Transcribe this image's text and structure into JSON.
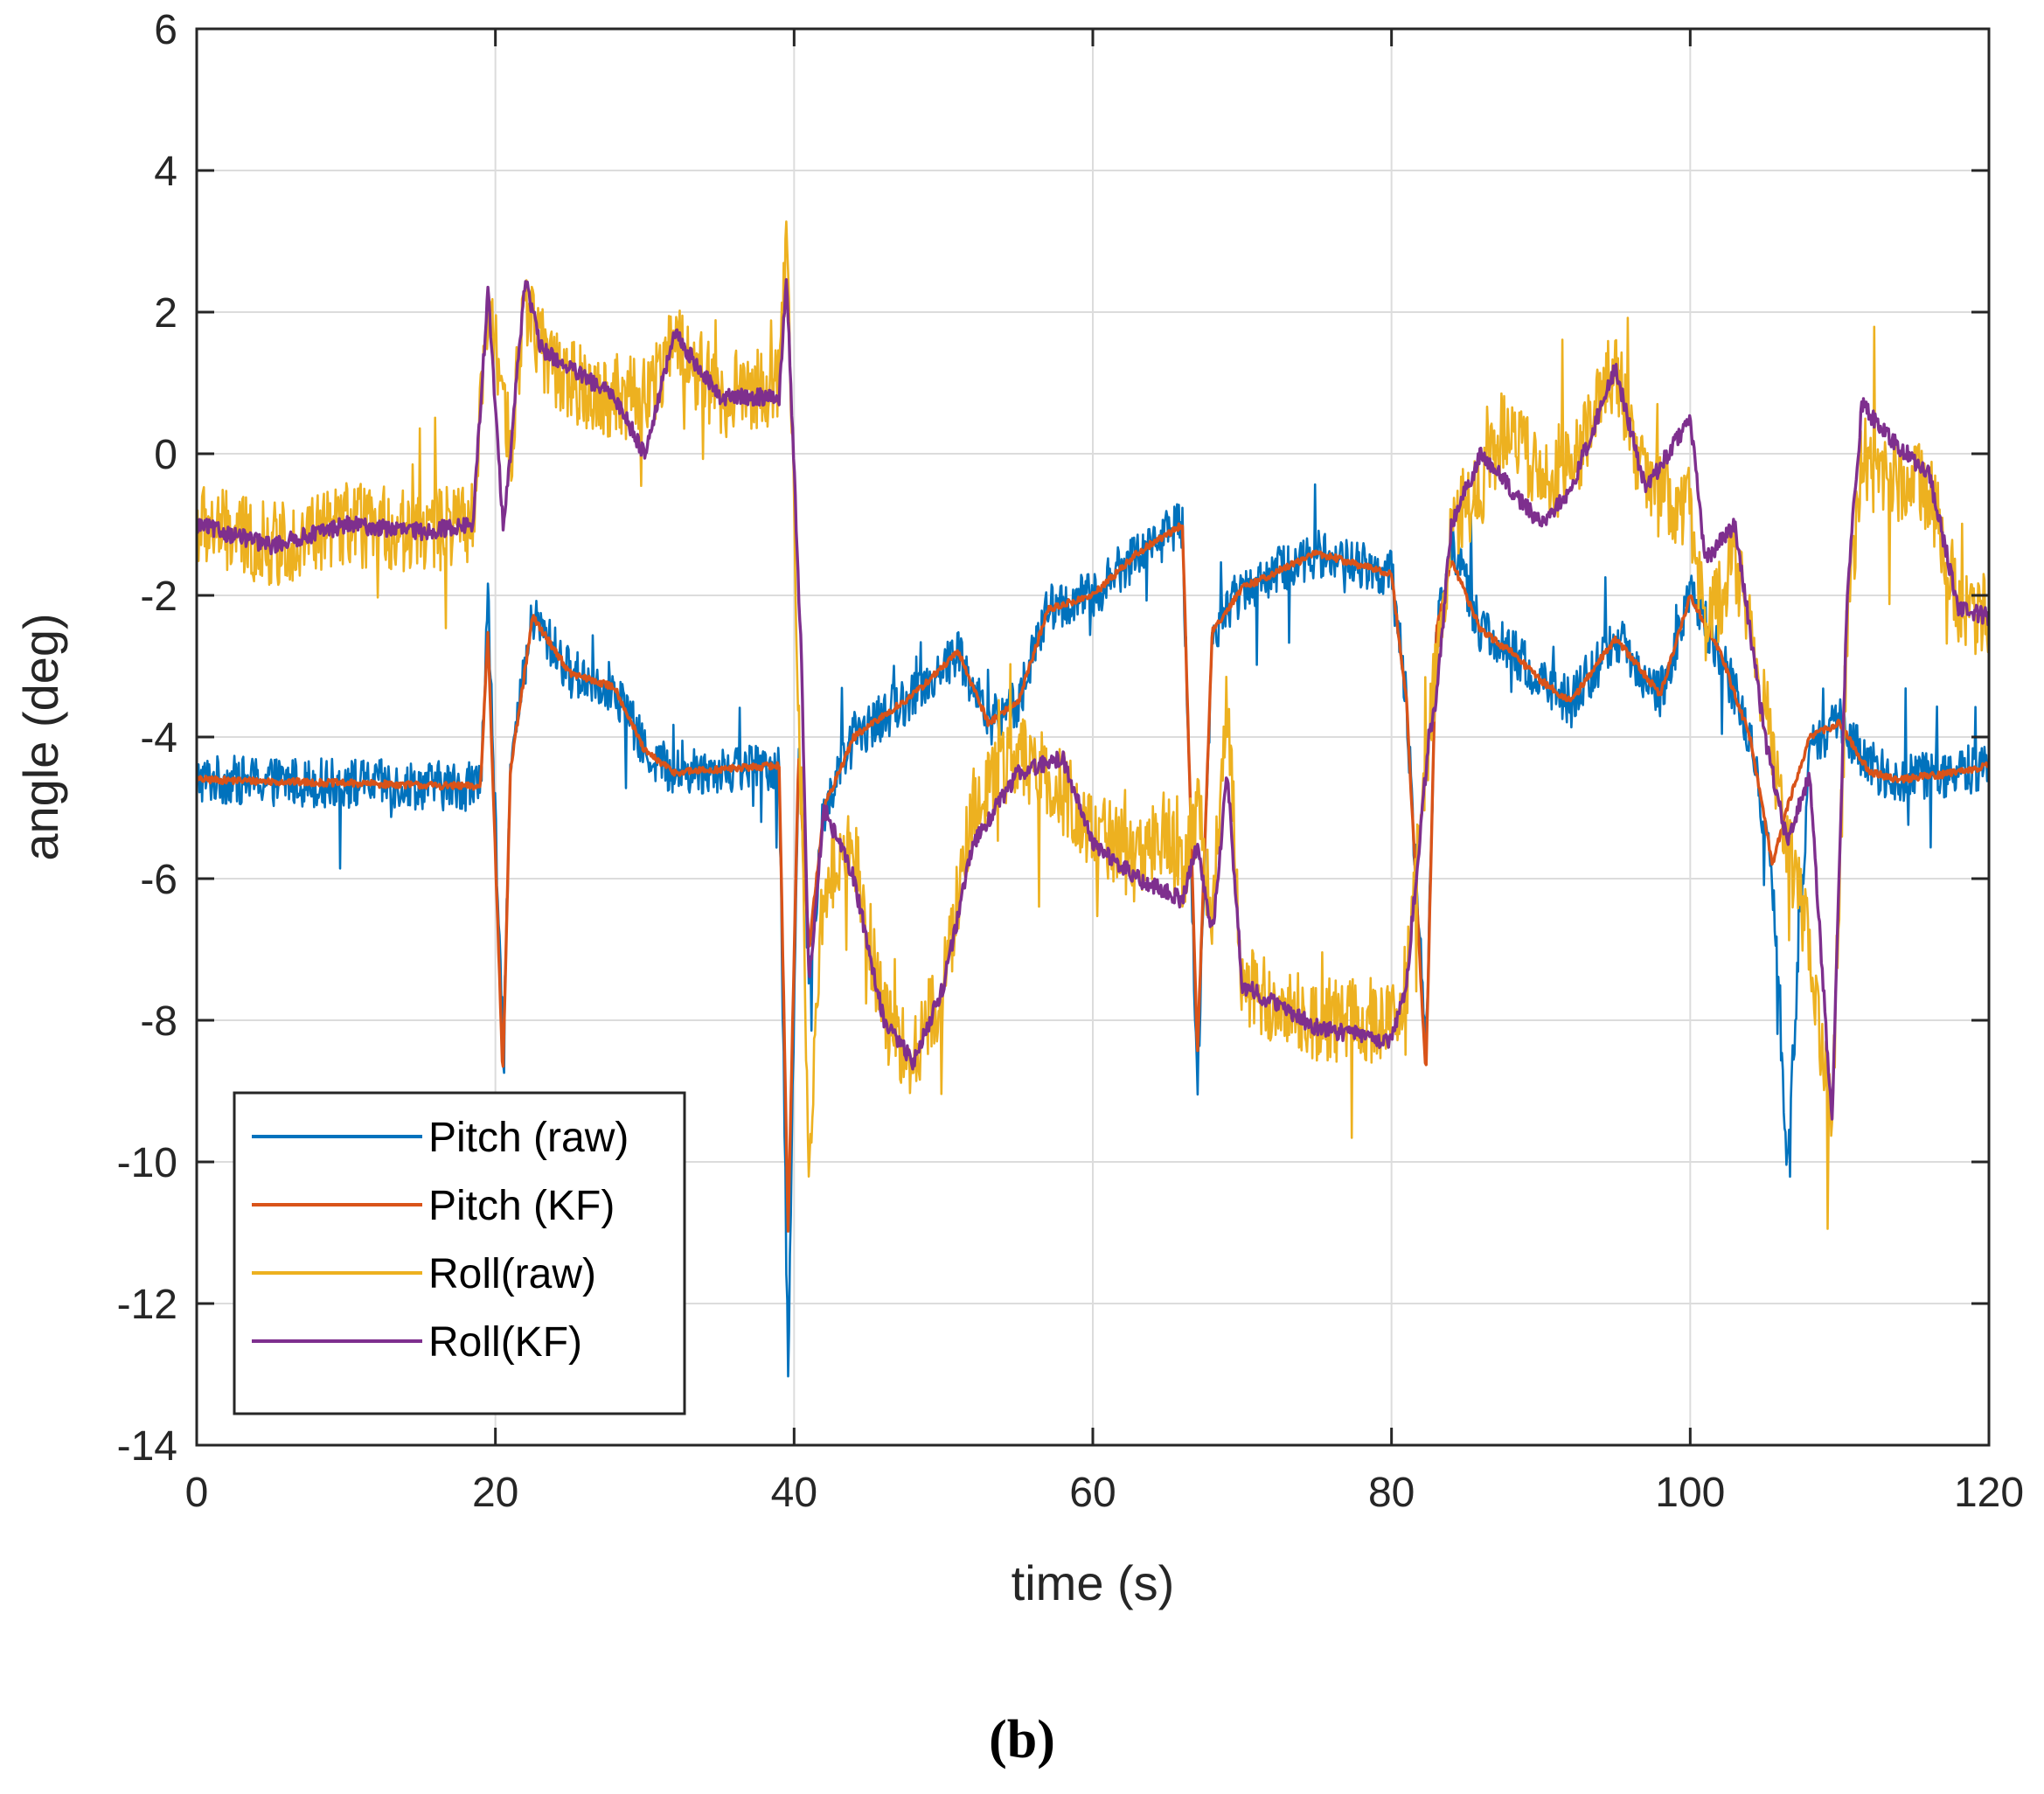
{
  "chart_data": {
    "type": "line",
    "title": "",
    "xlabel": "time (s)",
    "ylabel": "angle (deg)",
    "xlim": [
      0,
      120
    ],
    "ylim": [
      -14,
      6
    ],
    "xticks": [
      0,
      20,
      40,
      60,
      80,
      100,
      120
    ],
    "yticks": [
      -14,
      -12,
      -10,
      -8,
      -6,
      -4,
      -2,
      0,
      2,
      4,
      6
    ],
    "grid": true,
    "legend_position": "bottom-left",
    "caption": "(b)",
    "series": [
      {
        "name": "Pitch (raw)",
        "color": "#0072BD",
        "noise": 0.35,
        "x": [
          0,
          19,
          19.5,
          20.5,
          21,
          22.5,
          25,
          28,
          30,
          32,
          39,
          39.6,
          40.3,
          41,
          42,
          44,
          48,
          51,
          53,
          55,
          57,
          60,
          63,
          66,
          67,
          68,
          70,
          75,
          80,
          81,
          82.3,
          83,
          84,
          86,
          88,
          90,
          92,
          95,
          98,
          100,
          102,
          104,
          105.5,
          106.5,
          108,
          110,
          112,
          114,
          118,
          120
        ],
        "y": [
          -4.6,
          -4.7,
          -2.0,
          -8.5,
          -4.5,
          -2.3,
          -3.1,
          -3.3,
          -4.2,
          -4.5,
          -4.4,
          -13.0,
          -4.0,
          -7.5,
          -5.0,
          -4.0,
          -3.4,
          -2.8,
          -3.8,
          -3.5,
          -2.2,
          -2.0,
          -1.4,
          -1.0,
          -9.0,
          -2.5,
          -1.9,
          -1.4,
          -1.7,
          -3.5,
          -8.5,
          -2.5,
          -1.2,
          -2.5,
          -2.8,
          -3.2,
          -3.5,
          -2.6,
          -3.4,
          -2.0,
          -2.8,
          -4.0,
          -6.0,
          -10.0,
          -4.2,
          -3.8,
          -4.4,
          -4.6,
          -4.5,
          -4.4
        ]
      },
      {
        "name": "Pitch (KF)",
        "color": "#D95319",
        "noise": 0.05,
        "x": [
          0,
          19,
          19.5,
          20.5,
          21,
          22.5,
          25,
          28,
          30,
          32,
          39,
          39.6,
          40.3,
          41,
          42,
          44,
          48,
          51,
          53,
          55,
          57,
          60,
          63,
          66,
          67,
          68,
          70,
          75,
          80,
          81,
          82.3,
          83,
          84,
          86,
          88,
          90,
          92,
          95,
          98,
          100,
          102,
          104,
          105.5,
          106.5,
          108,
          110,
          112,
          114,
          118,
          120
        ],
        "y": [
          -4.6,
          -4.7,
          -2.5,
          -8.8,
          -4.5,
          -2.3,
          -3.1,
          -3.3,
          -4.2,
          -4.5,
          -4.4,
          -11.0,
          -4.2,
          -7.0,
          -5.0,
          -4.0,
          -3.4,
          -2.8,
          -3.8,
          -3.5,
          -2.2,
          -2.0,
          -1.4,
          -1.0,
          -8.5,
          -2.5,
          -1.9,
          -1.4,
          -1.7,
          -3.5,
          -8.8,
          -2.5,
          -1.5,
          -2.5,
          -2.8,
          -3.2,
          -3.5,
          -2.6,
          -3.4,
          -2.0,
          -2.8,
          -4.0,
          -5.8,
          -5.0,
          -4.0,
          -3.8,
          -4.5,
          -4.6,
          -4.5,
          -4.4
        ]
      },
      {
        "name": "Roll(raw)",
        "color": "#EDB120",
        "noise": 0.6,
        "x": [
          0,
          5,
          10,
          15,
          18.5,
          19.5,
          20.5,
          21,
          22,
          23,
          25,
          28,
          30,
          32,
          35,
          39,
          39.5,
          40.5,
          41,
          42,
          44,
          46,
          48,
          50,
          52,
          55,
          58,
          60,
          63,
          65,
          66,
          67,
          68,
          69,
          70,
          75,
          80,
          81,
          82.5,
          83,
          84,
          86,
          88,
          90,
          92,
          95,
          97,
          100,
          101,
          103,
          105,
          106.5,
          108,
          109.5,
          110.5,
          111.5,
          113,
          116,
          118,
          120
        ],
        "y": [
          -1.0,
          -1.3,
          -1.0,
          -1.1,
          -1.0,
          2.0,
          1.0,
          0.0,
          2.2,
          1.5,
          1.0,
          0.8,
          0.8,
          1.6,
          0.8,
          1.0,
          3.0,
          -5.0,
          -10.0,
          -6.0,
          -5.5,
          -8.0,
          -8.5,
          -7.5,
          -5.0,
          -4.2,
          -4.8,
          -5.3,
          -5.8,
          -5.3,
          -6.0,
          -5.0,
          -6.5,
          -3.5,
          -7.5,
          -8.0,
          -8.0,
          -7.5,
          -4.0,
          -3.0,
          -1.0,
          -0.5,
          0.5,
          -0.5,
          -0.2,
          1.3,
          -0.5,
          -0.8,
          -2.5,
          -1.5,
          -3.5,
          -5.5,
          -7.0,
          -9.5,
          -2.5,
          0.0,
          -0.3,
          -0.5,
          -2.2,
          -2.3
        ]
      },
      {
        "name": "Roll(KF)",
        "color": "#7E2F8E",
        "noise": 0.12,
        "x": [
          0,
          5,
          10,
          15,
          18.5,
          19.5,
          20.5,
          21,
          22,
          23,
          25,
          28,
          30,
          32,
          35,
          39,
          39.5,
          40.5,
          41,
          42,
          44,
          46,
          48,
          50,
          52,
          55,
          58,
          60,
          63,
          65,
          66,
          67,
          68,
          69,
          70,
          75,
          80,
          81,
          82.5,
          83,
          84,
          86,
          88,
          90,
          92,
          95,
          97,
          100,
          101,
          103,
          105,
          106.5,
          108,
          109.5,
          110.5,
          111.5,
          113,
          116,
          118,
          120
        ],
        "y": [
          -1.0,
          -1.3,
          -1.0,
          -1.1,
          -1.0,
          2.3,
          -1.0,
          0.0,
          2.5,
          1.5,
          1.2,
          0.8,
          0.0,
          1.7,
          0.8,
          0.8,
          2.5,
          -3.0,
          -7.5,
          -5.0,
          -6.0,
          -8.0,
          -8.6,
          -7.5,
          -5.5,
          -4.5,
          -4.3,
          -5.5,
          -6.0,
          -6.2,
          -6.3,
          -5.5,
          -6.8,
          -4.5,
          -7.5,
          -8.1,
          -8.3,
          -7.5,
          -4.0,
          -3.5,
          -1.0,
          0.0,
          -0.5,
          -1.0,
          -0.5,
          1.2,
          -0.5,
          0.5,
          -1.5,
          -1.0,
          -4.0,
          -5.5,
          -4.5,
          -9.5,
          -2.0,
          0.7,
          0.3,
          -0.3,
          -2.2,
          -2.3
        ]
      }
    ]
  }
}
